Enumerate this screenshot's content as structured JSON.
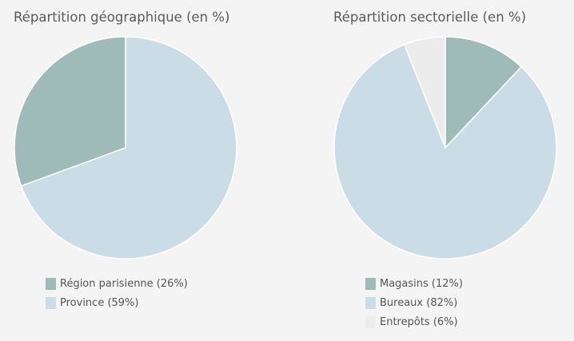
{
  "chart_data": [
    {
      "type": "pie",
      "title": "Répartition géographique (en %)",
      "slices": [
        {
          "label": "Région parisienne (26%)",
          "name": "Région parisienne",
          "value": 26,
          "color": "#9fbbb9"
        },
        {
          "label": "Province (59%)",
          "name": "Province",
          "value": 59,
          "color": "#cadde6"
        }
      ],
      "legend_position": "bottom-left"
    },
    {
      "type": "pie",
      "title": "Répartition sectorielle (en %)",
      "slices": [
        {
          "label": "Magasins (12%)",
          "name": "Magasins",
          "value": 12,
          "color": "#9fbbb9"
        },
        {
          "label": "Bureaux (82%)",
          "name": "Bureaux",
          "value": 82,
          "color": "#cadde6"
        },
        {
          "label": "Entrepôts (6%)",
          "name": "Entrepôts",
          "value": 6,
          "color": "#ececec"
        }
      ],
      "legend_position": "bottom-left"
    }
  ]
}
